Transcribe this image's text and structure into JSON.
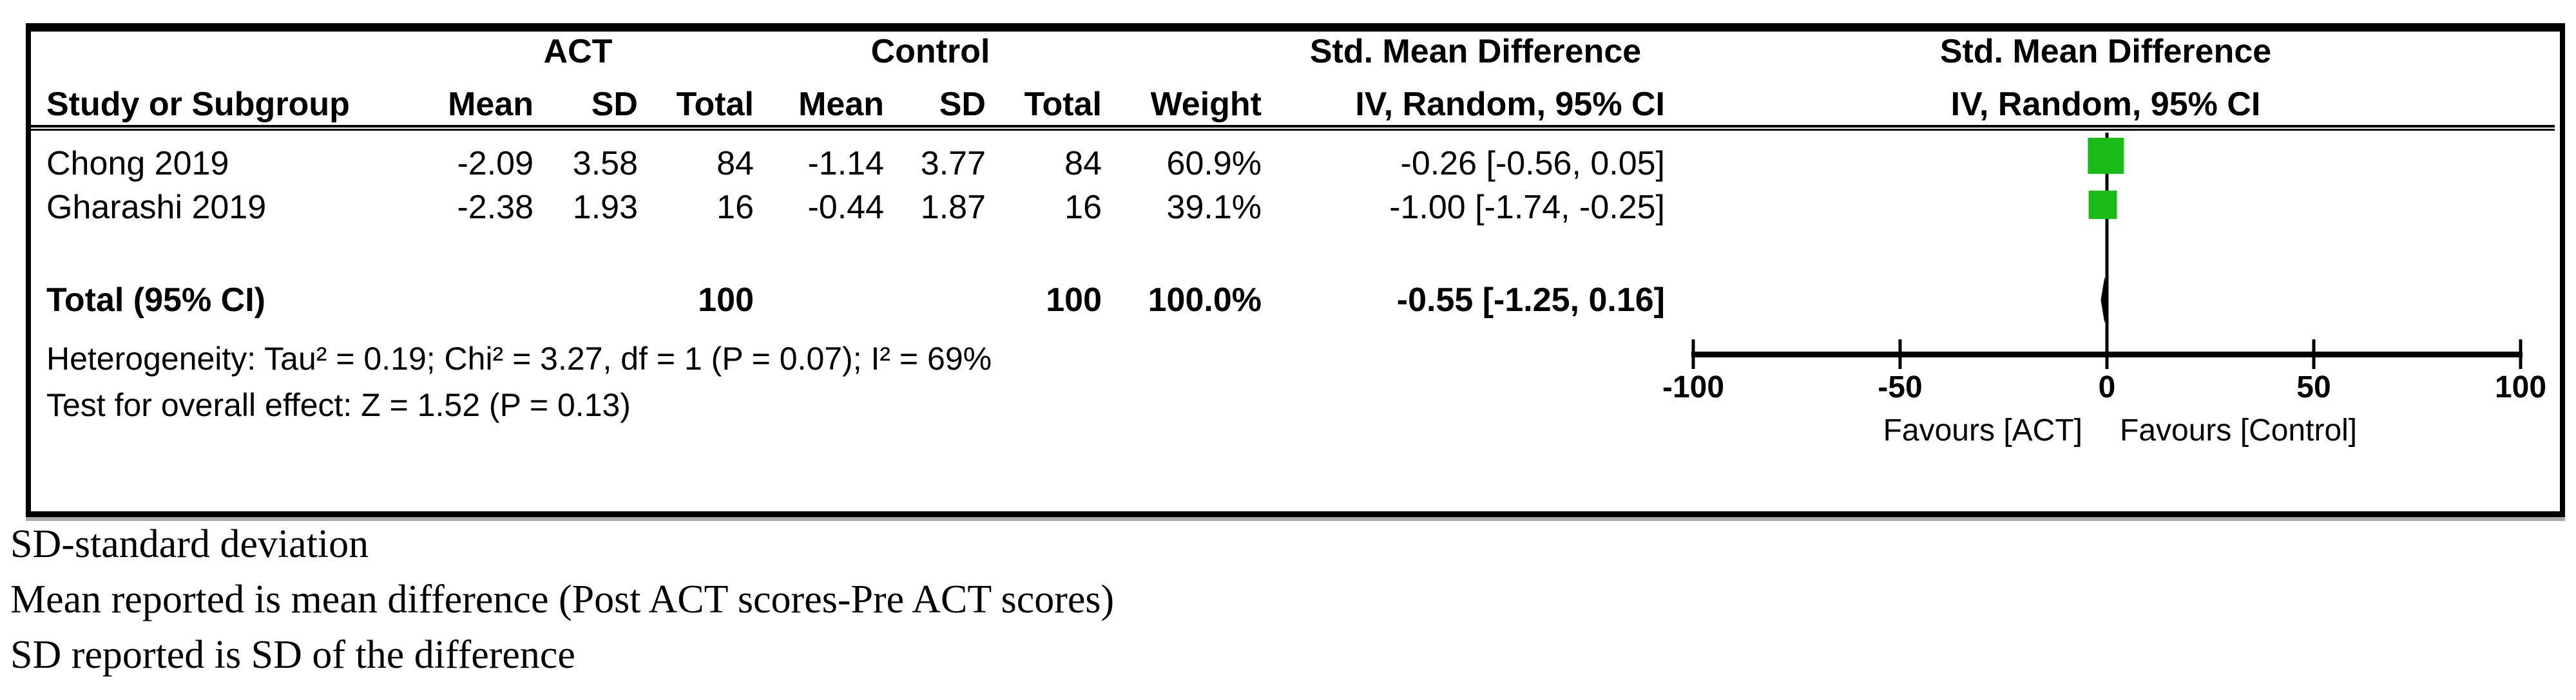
{
  "table": {
    "group_headers": {
      "act": "ACT",
      "control": "Control",
      "smd_table": "Std. Mean Difference",
      "smd_plot": "Std. Mean Difference"
    },
    "col_headers": {
      "study": "Study or Subgroup",
      "act_mean": "Mean",
      "act_sd": "SD",
      "act_total": "Total",
      "ctrl_mean": "Mean",
      "ctrl_sd": "SD",
      "ctrl_total": "Total",
      "weight": "Weight",
      "iv_table": "IV, Random, 95% CI",
      "iv_plot": "IV, Random, 95% CI"
    },
    "rows": [
      {
        "study": "Chong 2019",
        "act_mean": "-2.09",
        "act_sd": "3.58",
        "act_total": "84",
        "ctrl_mean": "-1.14",
        "ctrl_sd": "3.77",
        "ctrl_total": "84",
        "weight": "60.9%",
        "ci_text": "-0.26 [-0.56, 0.05]"
      },
      {
        "study": "Gharashi 2019",
        "act_mean": "-2.38",
        "act_sd": "1.93",
        "act_total": "16",
        "ctrl_mean": "-0.44",
        "ctrl_sd": "1.87",
        "ctrl_total": "16",
        "weight": "39.1%",
        "ci_text": "-1.00 [-1.74, -0.25]"
      }
    ],
    "total_row": {
      "label": "Total (95% CI)",
      "act_total": "100",
      "ctrl_total": "100",
      "weight": "100.0%",
      "ci_text": "-0.55 [-1.25, 0.16]"
    },
    "heterogeneity": "Heterogeneity: Tau² = 0.19; Chi² = 3.27, df = 1 (P = 0.07); I² = 69%",
    "overall_effect": "Test for overall effect: Z = 1.52 (P = 0.13)"
  },
  "axis": {
    "tick_labels": [
      "-100",
      "-50",
      "0",
      "50",
      "100"
    ],
    "favours_left": "Favours [ACT]",
    "favours_right": "Favours [Control]"
  },
  "footnotes": [
    "SD-standard deviation",
    "Mean reported is mean difference (Post ACT scores-Pre ACT scores)",
    "SD reported is SD of the difference"
  ],
  "colors": {
    "marker_green": "#19bb19",
    "diamond_black": "#000000",
    "axis_black": "#000000"
  },
  "chart_data": {
    "type": "scatter",
    "title": "Forest plot: Std. Mean Difference, IV, Random, 95% CI",
    "xlim": [
      -100,
      100
    ],
    "xticks": [
      -100,
      -50,
      0,
      50,
      100
    ],
    "legend_position": "none",
    "grid": false,
    "studies": [
      {
        "name": "Chong 2019",
        "smd": -0.26,
        "ci": [
          -0.56,
          0.05
        ],
        "weight_pct": 60.9
      },
      {
        "name": "Gharashi 2019",
        "smd": -1.0,
        "ci": [
          -1.74,
          -0.25
        ],
        "weight_pct": 39.1
      }
    ],
    "total": {
      "name": "Total (95% CI)",
      "smd": -0.55,
      "ci": [
        -1.25,
        0.16
      ],
      "weight_pct": 100.0
    },
    "xlabel_left": "Favours [ACT]",
    "xlabel_right": "Favours [Control]"
  }
}
